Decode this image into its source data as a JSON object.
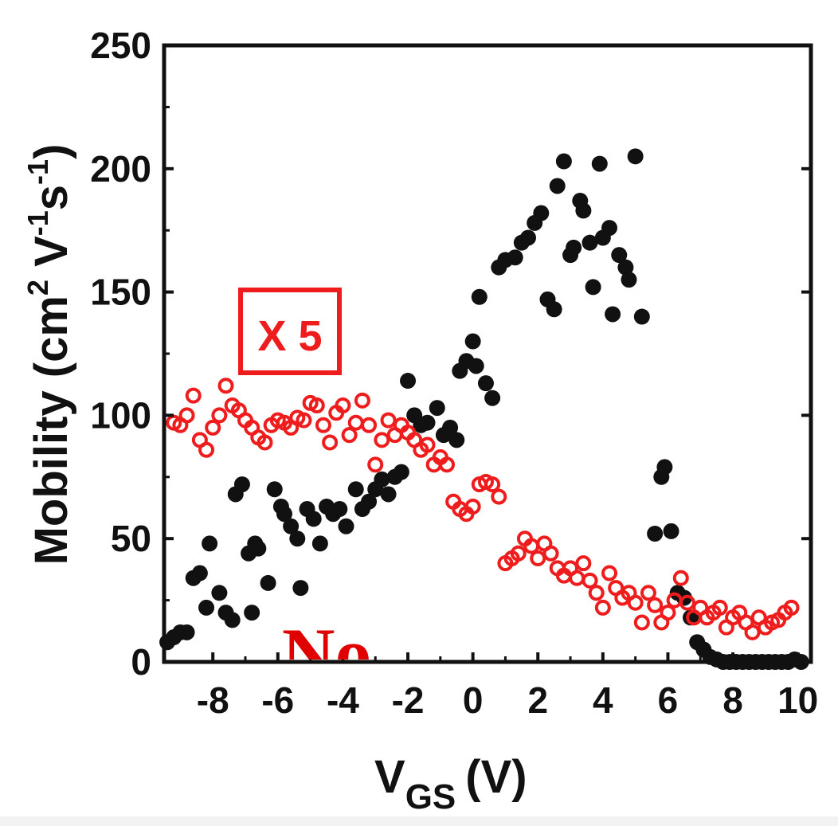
{
  "chart_data": {
    "type": "scatter",
    "xlabel_main": "V",
    "xlabel_sub": "GS",
    "xlabel_unit": "(V)",
    "ylabel": "Mobility (cm",
    "ylabel_sup1": "2",
    "ylabel_mid": " V",
    "ylabel_sup2": "-1",
    "ylabel_s": "s",
    "ylabel_sup3": "-1",
    "ylabel_end": ")",
    "xlim": [
      -9.5,
      10.4
    ],
    "ylim": [
      0,
      250
    ],
    "x_ticks": [
      -8,
      -6,
      -4,
      -2,
      0,
      2,
      4,
      6,
      8,
      10
    ],
    "x_tick_labels": [
      "-8",
      "-6",
      "-4",
      "-2",
      "0",
      "2",
      "4",
      "6",
      "8",
      "10"
    ],
    "y_ticks": [
      0,
      50,
      100,
      150,
      200,
      250
    ],
    "y_tick_labels": [
      "0",
      "50",
      "100",
      "150",
      "200",
      "250"
    ],
    "grid": false,
    "colors": {
      "black_series": "#111111",
      "red_series": "#ee1c1c",
      "axis": "#111111"
    },
    "annotations": {
      "scale_badge": "X 5",
      "corner_label": "No"
    },
    "series": [
      {
        "marker": "filled-circle",
        "color": "#111111",
        "points": [
          [
            -9.4,
            8
          ],
          [
            -9.2,
            10
          ],
          [
            -9.0,
            12
          ],
          [
            -8.8,
            12
          ],
          [
            -8.6,
            34
          ],
          [
            -8.4,
            36
          ],
          [
            -8.2,
            22
          ],
          [
            -8.1,
            48
          ],
          [
            -7.8,
            28
          ],
          [
            -7.6,
            20
          ],
          [
            -7.4,
            17
          ],
          [
            -7.3,
            68
          ],
          [
            -7.1,
            72
          ],
          [
            -6.9,
            44
          ],
          [
            -6.8,
            20
          ],
          [
            -6.7,
            48
          ],
          [
            -6.6,
            46
          ],
          [
            -6.3,
            32
          ],
          [
            -6.1,
            70
          ],
          [
            -5.9,
            63
          ],
          [
            -5.8,
            60
          ],
          [
            -5.6,
            55
          ],
          [
            -5.4,
            50
          ],
          [
            -5.3,
            30
          ],
          [
            -5.1,
            62
          ],
          [
            -4.9,
            58
          ],
          [
            -4.7,
            48
          ],
          [
            -4.5,
            63
          ],
          [
            -4.3,
            60
          ],
          [
            -4.1,
            62
          ],
          [
            -3.9,
            55
          ],
          [
            -3.6,
            70
          ],
          [
            -3.4,
            62
          ],
          [
            -3.2,
            65
          ],
          [
            -3.0,
            70
          ],
          [
            -2.8,
            74
          ],
          [
            -2.6,
            68
          ],
          [
            -2.4,
            75
          ],
          [
            -2.2,
            77
          ],
          [
            -2.0,
            114
          ],
          [
            -1.8,
            100
          ],
          [
            -1.6,
            96
          ],
          [
            -1.4,
            97
          ],
          [
            -1.1,
            103
          ],
          [
            -0.9,
            92
          ],
          [
            -0.7,
            95
          ],
          [
            -0.5,
            90
          ],
          [
            -0.4,
            118
          ],
          [
            -0.2,
            122
          ],
          [
            0.0,
            130
          ],
          [
            0.1,
            120
          ],
          [
            0.2,
            148
          ],
          [
            0.4,
            113
          ],
          [
            0.6,
            107
          ],
          [
            0.8,
            160
          ],
          [
            1.0,
            163
          ],
          [
            1.3,
            164
          ],
          [
            1.5,
            170
          ],
          [
            1.7,
            172
          ],
          [
            1.9,
            178
          ],
          [
            2.1,
            182
          ],
          [
            2.3,
            147
          ],
          [
            2.5,
            143
          ],
          [
            2.6,
            193
          ],
          [
            2.8,
            203
          ],
          [
            3.0,
            165
          ],
          [
            3.1,
            168
          ],
          [
            3.3,
            187
          ],
          [
            3.4,
            183
          ],
          [
            3.6,
            170
          ],
          [
            3.7,
            152
          ],
          [
            3.9,
            202
          ],
          [
            4.0,
            172
          ],
          [
            4.2,
            176
          ],
          [
            4.3,
            141
          ],
          [
            4.5,
            165
          ],
          [
            4.7,
            160
          ],
          [
            4.8,
            155
          ],
          [
            5.0,
            205
          ],
          [
            5.2,
            140
          ],
          [
            5.6,
            52
          ],
          [
            5.8,
            75
          ],
          [
            5.9,
            79
          ],
          [
            6.1,
            53
          ],
          [
            6.3,
            28
          ],
          [
            6.5,
            26
          ],
          [
            6.7,
            18
          ],
          [
            6.9,
            8
          ],
          [
            7.1,
            5
          ],
          [
            7.3,
            2
          ],
          [
            7.5,
            1
          ],
          [
            7.7,
            0
          ],
          [
            7.9,
            0
          ],
          [
            8.1,
            0
          ],
          [
            8.3,
            0
          ],
          [
            8.5,
            0
          ],
          [
            8.7,
            0
          ],
          [
            8.9,
            0
          ],
          [
            9.1,
            0
          ],
          [
            9.3,
            0
          ],
          [
            9.5,
            0
          ],
          [
            9.7,
            0
          ],
          [
            9.9,
            1
          ],
          [
            10.1,
            0
          ]
        ]
      },
      {
        "marker": "open-circle",
        "color": "#ee1c1c",
        "points": [
          [
            -9.2,
            97
          ],
          [
            -9.0,
            96
          ],
          [
            -8.8,
            100
          ],
          [
            -8.6,
            108
          ],
          [
            -8.4,
            90
          ],
          [
            -8.2,
            86
          ],
          [
            -8.0,
            95
          ],
          [
            -7.8,
            100
          ],
          [
            -7.6,
            112
          ],
          [
            -7.4,
            104
          ],
          [
            -7.2,
            102
          ],
          [
            -7.0,
            98
          ],
          [
            -6.8,
            95
          ],
          [
            -6.6,
            91
          ],
          [
            -6.4,
            89
          ],
          [
            -6.2,
            96
          ],
          [
            -6.0,
            98
          ],
          [
            -5.8,
            97
          ],
          [
            -5.6,
            95
          ],
          [
            -5.4,
            99
          ],
          [
            -5.2,
            98
          ],
          [
            -5.0,
            105
          ],
          [
            -4.8,
            104
          ],
          [
            -4.6,
            96
          ],
          [
            -4.4,
            89
          ],
          [
            -4.2,
            101
          ],
          [
            -4.0,
            104
          ],
          [
            -3.8,
            92
          ],
          [
            -3.6,
            97
          ],
          [
            -3.4,
            106
          ],
          [
            -3.2,
            96
          ],
          [
            -3.0,
            80
          ],
          [
            -2.8,
            90
          ],
          [
            -2.6,
            98
          ],
          [
            -2.4,
            92
          ],
          [
            -2.2,
            96
          ],
          [
            -2.0,
            93
          ],
          [
            -1.8,
            90
          ],
          [
            -1.6,
            86
          ],
          [
            -1.4,
            88
          ],
          [
            -1.2,
            80
          ],
          [
            -1.0,
            83
          ],
          [
            -0.8,
            80
          ],
          [
            -0.6,
            65
          ],
          [
            -0.4,
            62
          ],
          [
            -0.2,
            60
          ],
          [
            0.0,
            63
          ],
          [
            0.2,
            72
          ],
          [
            0.4,
            73
          ],
          [
            0.6,
            72
          ],
          [
            0.8,
            67
          ],
          [
            1.0,
            40
          ],
          [
            1.2,
            42
          ],
          [
            1.4,
            44
          ],
          [
            1.6,
            50
          ],
          [
            1.8,
            47
          ],
          [
            2.0,
            42
          ],
          [
            2.2,
            48
          ],
          [
            2.4,
            44
          ],
          [
            2.6,
            38
          ],
          [
            2.8,
            35
          ],
          [
            3.0,
            38
          ],
          [
            3.2,
            34
          ],
          [
            3.4,
            40
          ],
          [
            3.6,
            33
          ],
          [
            3.8,
            28
          ],
          [
            4.0,
            22
          ],
          [
            4.2,
            36
          ],
          [
            4.4,
            30
          ],
          [
            4.6,
            26
          ],
          [
            4.8,
            28
          ],
          [
            5.0,
            24
          ],
          [
            5.2,
            16
          ],
          [
            5.4,
            28
          ],
          [
            5.6,
            23
          ],
          [
            5.8,
            16
          ],
          [
            6.0,
            20
          ],
          [
            6.2,
            25
          ],
          [
            6.4,
            34
          ],
          [
            6.6,
            24
          ],
          [
            6.8,
            18
          ],
          [
            7.0,
            22
          ],
          [
            7.2,
            18
          ],
          [
            7.4,
            20
          ],
          [
            7.6,
            22
          ],
          [
            7.8,
            14
          ],
          [
            8.0,
            18
          ],
          [
            8.2,
            20
          ],
          [
            8.4,
            16
          ],
          [
            8.6,
            12
          ],
          [
            8.8,
            18
          ],
          [
            9.0,
            14
          ],
          [
            9.2,
            16
          ],
          [
            9.4,
            17
          ],
          [
            9.6,
            20
          ],
          [
            9.8,
            22
          ]
        ]
      }
    ]
  }
}
